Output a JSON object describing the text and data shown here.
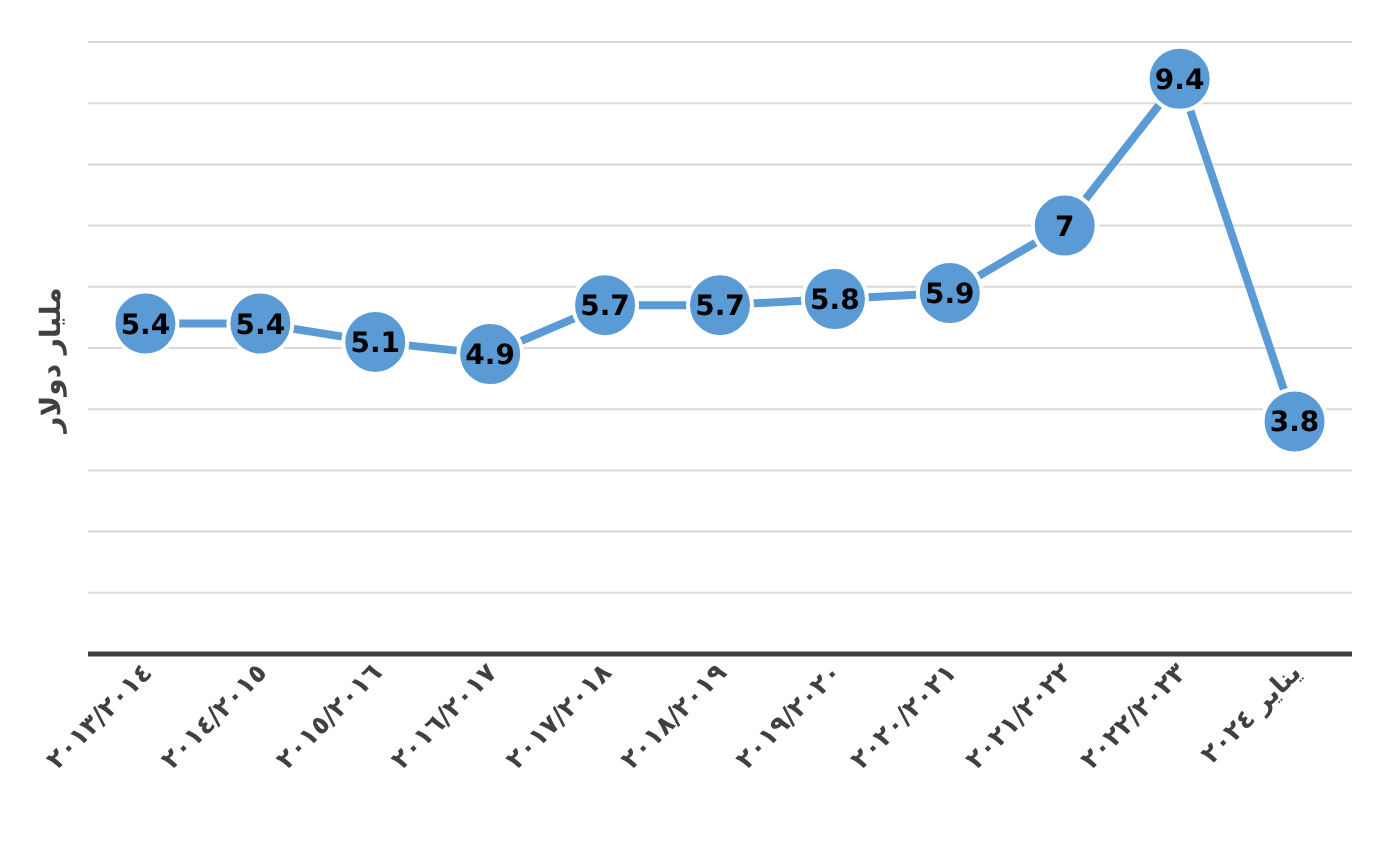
{
  "chart_data": {
    "type": "line",
    "ylabel": "مليار دولار",
    "categories": [
      "٢٠١٣/٢٠١٤",
      "٢٠١٤/٢٠١٥",
      "٢٠١٥/٢٠١٦",
      "٢٠١٦/٢٠١٧",
      "٢٠١٧/٢٠١٨",
      "٢٠١٨/٢٠١٩",
      "٢٠١٩/٢٠٢٠",
      "٢٠٢٠/٢٠٢١",
      "٢٠٢١/٢٠٢٢",
      "٢٠٢٢/٢٠٢٣",
      "يناير ٢٠٢٤"
    ],
    "series": [
      {
        "color": "#5b9bd5",
        "values": [
          5.4,
          5.4,
          5.1,
          4.9,
          5.7,
          5.7,
          5.8,
          5.9,
          7,
          9.4,
          3.8
        ]
      }
    ],
    "ylim": [
      0,
      10
    ],
    "yticks": [
      {
        "value": 0,
        "label": null
      },
      {
        "value": 1,
        "label": null
      },
      {
        "value": 2,
        "label": null
      },
      {
        "value": 3,
        "label": null
      },
      {
        "value": 4,
        "label": null
      },
      {
        "value": 5,
        "label": null
      },
      {
        "value": 6,
        "label": null
      },
      {
        "value": 7,
        "label": null
      },
      {
        "value": 8,
        "label": null
      },
      {
        "value": 9,
        "label": null
      },
      {
        "value": 10,
        "label": null
      }
    ],
    "grid": true,
    "marker": "circle",
    "line_style": "solid",
    "data_labels": true
  }
}
